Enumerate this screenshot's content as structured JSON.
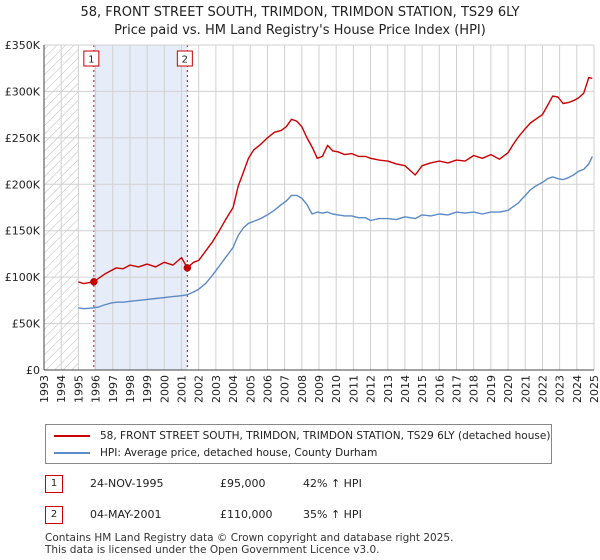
{
  "title_line1": "58, FRONT STREET SOUTH, TRIMDON, TRIMDON STATION, TS29 6LY",
  "title_line2": "Price paid vs. HM Land Registry's House Price Index (HPI)",
  "colors": {
    "property": "#cc0000",
    "hpi": "#5b8ac6",
    "shade": "#e6ecf8",
    "hatch": "#bbbbbb",
    "grid": "#d0d0d0"
  },
  "chart_data": {
    "type": "line",
    "xlim": [
      1993,
      2025
    ],
    "ylim": [
      0,
      350000
    ],
    "y_ticks": [
      0,
      50000,
      100000,
      150000,
      200000,
      250000,
      300000,
      350000
    ],
    "y_tick_labels": [
      "£0",
      "£50K",
      "£100K",
      "£150K",
      "£200K",
      "£250K",
      "£300K",
      "£350K"
    ],
    "x_ticks": [
      "1993",
      "1994",
      "1995",
      "1996",
      "1997",
      "1998",
      "1999",
      "2000",
      "2001",
      "2002",
      "2003",
      "2004",
      "2005",
      "2006",
      "2007",
      "2008",
      "2009",
      "2010",
      "2011",
      "2012",
      "2013",
      "2014",
      "2015",
      "2016",
      "2017",
      "2018",
      "2019",
      "2020",
      "2021",
      "2022",
      "2023",
      "2024",
      "2025"
    ],
    "hatched_range": [
      1993,
      1995.0
    ],
    "shaded_range": [
      1995.9,
      2001.34
    ],
    "series": [
      {
        "name": "58, FRONT STREET SOUTH, TRIMDON, TRIMDON STATION, TS29 6LY (detached house)",
        "x": [
          1995.0,
          1995.3,
          1995.6,
          1995.9,
          1996.2,
          1996.5,
          1996.9,
          1997.2,
          1997.6,
          1998.0,
          1998.5,
          1999.0,
          1999.5,
          2000.0,
          2000.5,
          2001.0,
          2001.34,
          2001.7,
          2002.0,
          2002.4,
          2002.8,
          2003.2,
          2003.6,
          2004.0,
          2004.3,
          2004.6,
          2004.9,
          2005.2,
          2005.6,
          2006.0,
          2006.4,
          2006.8,
          2007.1,
          2007.4,
          2007.7,
          2008.0,
          2008.3,
          2008.6,
          2008.9,
          2009.2,
          2009.5,
          2009.8,
          2010.1,
          2010.5,
          2010.9,
          2011.3,
          2011.7,
          2012.0,
          2012.5,
          2013.0,
          2013.5,
          2014.0,
          2014.3,
          2014.6,
          2015.0,
          2015.5,
          2016.0,
          2016.5,
          2017.0,
          2017.5,
          2018.0,
          2018.5,
          2019.0,
          2019.5,
          2020.0,
          2020.3,
          2020.6,
          2021.0,
          2021.3,
          2021.6,
          2022.0,
          2022.3,
          2022.6,
          2022.9,
          2023.2,
          2023.5,
          2023.8,
          2024.1,
          2024.4,
          2024.7,
          2024.9
        ],
        "values": [
          95000,
          93000,
          94000,
          95000,
          99000,
          103000,
          107000,
          110000,
          109000,
          113000,
          111000,
          114000,
          111000,
          116000,
          113000,
          121000,
          110000,
          116000,
          118000,
          128000,
          138000,
          150000,
          163000,
          175000,
          198000,
          213000,
          228000,
          237000,
          243000,
          250000,
          256000,
          258000,
          262000,
          270000,
          268000,
          262000,
          250000,
          240000,
          228000,
          230000,
          242000,
          236000,
          235000,
          232000,
          233000,
          230000,
          230000,
          228000,
          226000,
          225000,
          222000,
          220000,
          215000,
          210000,
          220000,
          223000,
          225000,
          223000,
          226000,
          225000,
          231000,
          228000,
          232000,
          227000,
          234000,
          243000,
          251000,
          260000,
          266000,
          270000,
          275000,
          285000,
          295000,
          294000,
          287000,
          288000,
          290000,
          293000,
          298000,
          315000,
          314000
        ]
      },
      {
        "name": "HPI: Average price, detached house, County Durham",
        "x": [
          1995.0,
          1995.3,
          1995.6,
          1995.9,
          1996.2,
          1996.5,
          1996.9,
          1997.2,
          1997.6,
          1998.0,
          1998.5,
          1999.0,
          1999.5,
          2000.0,
          2000.5,
          2001.0,
          2001.34,
          2001.7,
          2002.0,
          2002.4,
          2002.8,
          2003.2,
          2003.6,
          2004.0,
          2004.3,
          2004.6,
          2004.9,
          2005.2,
          2005.6,
          2006.0,
          2006.4,
          2006.8,
          2007.1,
          2007.4,
          2007.7,
          2008.0,
          2008.3,
          2008.6,
          2008.9,
          2009.2,
          2009.5,
          2009.8,
          2010.1,
          2010.5,
          2010.9,
          2011.3,
          2011.7,
          2012.0,
          2012.5,
          2013.0,
          2013.5,
          2014.0,
          2014.3,
          2014.6,
          2015.0,
          2015.5,
          2016.0,
          2016.5,
          2017.0,
          2017.5,
          2018.0,
          2018.5,
          2019.0,
          2019.5,
          2020.0,
          2020.3,
          2020.6,
          2021.0,
          2021.3,
          2021.6,
          2022.0,
          2022.3,
          2022.6,
          2022.9,
          2023.2,
          2023.5,
          2023.8,
          2024.1,
          2024.4,
          2024.7,
          2024.9
        ],
        "values": [
          67000,
          66000,
          66500,
          67000,
          68000,
          70000,
          72000,
          73000,
          73000,
          74000,
          75000,
          76000,
          77000,
          78000,
          79000,
          80000,
          81000,
          84000,
          87000,
          93000,
          102000,
          112000,
          122000,
          132000,
          145000,
          153000,
          158000,
          160000,
          163000,
          167000,
          172000,
          178000,
          182000,
          188000,
          188000,
          185000,
          178000,
          168000,
          170000,
          169000,
          170000,
          168000,
          167000,
          166000,
          166000,
          164000,
          164000,
          161000,
          163000,
          163000,
          162000,
          165000,
          164000,
          163000,
          167000,
          166000,
          168000,
          167000,
          170000,
          169000,
          170000,
          168000,
          170000,
          170000,
          172000,
          176000,
          180000,
          188000,
          194000,
          198000,
          202000,
          206000,
          208000,
          206000,
          205000,
          207000,
          210000,
          214000,
          216000,
          222000,
          230000
        ]
      }
    ],
    "sales": [
      {
        "label": "1",
        "x": 1995.9,
        "value": 95000
      },
      {
        "label": "2",
        "x": 2001.34,
        "value": 110000
      }
    ]
  },
  "legend": {
    "property_label": "58, FRONT STREET SOUTH, TRIMDON, TRIMDON STATION, TS29 6LY (detached house)",
    "hpi_label": "HPI: Average price, detached house, County Durham"
  },
  "sales_table": [
    {
      "num": "1",
      "date": "24-NOV-1995",
      "price": "£95,000",
      "hpi": "42% ↑ HPI"
    },
    {
      "num": "2",
      "date": "04-MAY-2001",
      "price": "£110,000",
      "hpi": "35% ↑ HPI"
    }
  ],
  "footer_line1": "Contains HM Land Registry data © Crown copyright and database right 2025.",
  "footer_line2": "This data is licensed under the Open Government Licence v3.0."
}
